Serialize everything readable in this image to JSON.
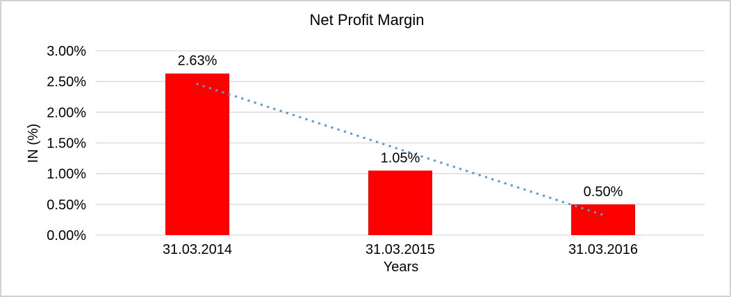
{
  "chart_data": {
    "type": "bar",
    "title": "Net Profit Margin",
    "xlabel": "Years",
    "ylabel": "IN (%)",
    "categories": [
      "31.03.2014",
      "31.03.2015",
      "31.03.2016"
    ],
    "values": [
      2.63,
      1.05,
      0.5
    ],
    "data_labels": [
      "2.63%",
      "1.05%",
      "0.50%"
    ],
    "value_unit": "%",
    "ylim": [
      0,
      3
    ],
    "y_ticks": [
      {
        "value": 0.0,
        "label": "0.00%"
      },
      {
        "value": 0.5,
        "label": "0.50%"
      },
      {
        "value": 1.0,
        "label": "1.00%"
      },
      {
        "value": 1.5,
        "label": "1.50%"
      },
      {
        "value": 2.0,
        "label": "2.00%"
      },
      {
        "value": 2.5,
        "label": "2.50%"
      },
      {
        "value": 3.0,
        "label": "3.00%"
      }
    ],
    "grid": "horizontal",
    "legend": "none",
    "trendline": {
      "type": "linear",
      "style": "dotted",
      "color": "#5B9BD5"
    },
    "colors": {
      "bar": "#FF0000",
      "gridline": "#D9D9D9",
      "chart_border": "#D2D2D2",
      "text": "#000000",
      "background": "#FFFFFF"
    }
  }
}
